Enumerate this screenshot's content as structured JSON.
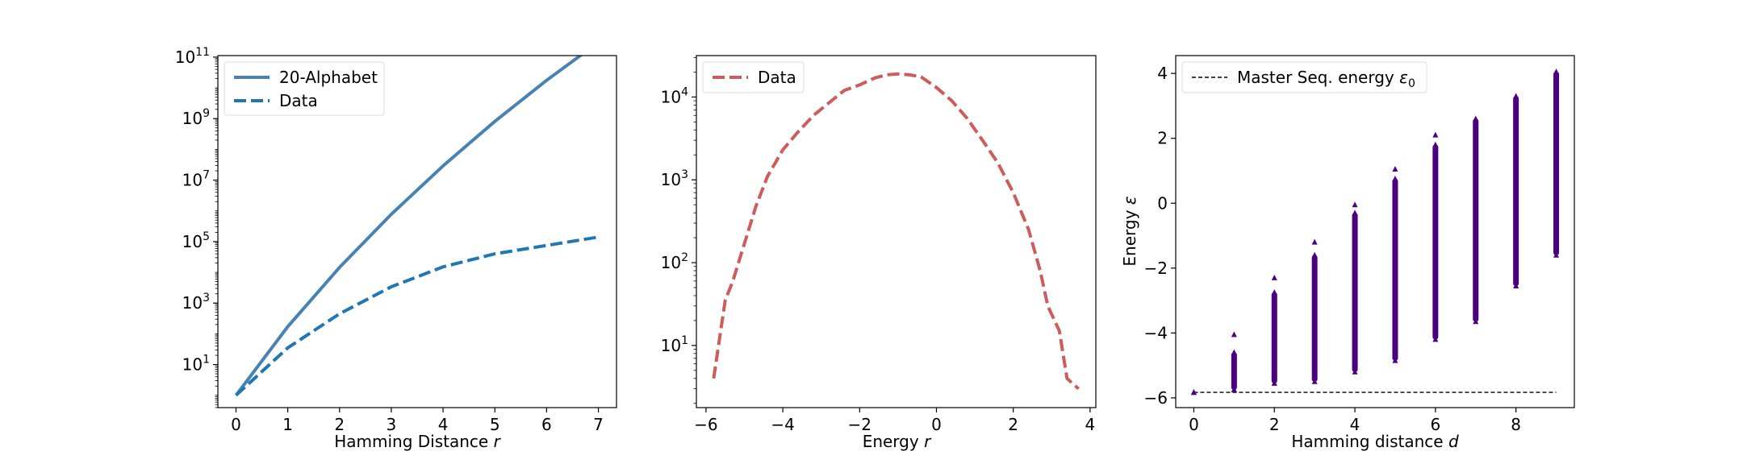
{
  "chart_data": [
    {
      "type": "line",
      "xlabel": "Hamming Distance",
      "xlabel_var": "r",
      "ylabel": "",
      "yscale": "log",
      "xlim": [
        -0.35,
        7.35
      ],
      "ylim_log10": [
        -0.4,
        11.05
      ],
      "xticks": [
        0,
        1,
        2,
        3,
        4,
        5,
        6,
        7
      ],
      "yticks": [
        {
          "base": "10",
          "exp": "1",
          "log": 1
        },
        {
          "base": "10",
          "exp": "3",
          "log": 3
        },
        {
          "base": "10",
          "exp": "5",
          "log": 5
        },
        {
          "base": "10",
          "exp": "7",
          "log": 7
        },
        {
          "base": "10",
          "exp": "9",
          "log": 9
        },
        {
          "base": "10",
          "exp": "11",
          "log": 11
        }
      ],
      "legend_position": "top-left",
      "series": [
        {
          "name": "20-Alphabet",
          "style": "solid",
          "color": "#4682b4",
          "x": [
            0,
            1,
            2,
            3,
            4,
            5,
            6,
            7
          ],
          "y": [
            1,
            171,
            14535,
            775200,
            29070000,
            813960000,
            17635800000,
            302328000000
          ]
        },
        {
          "name": "Data",
          "style": "dashed",
          "color": "#1f77b4",
          "x": [
            0,
            1,
            2,
            3,
            4,
            5,
            6,
            7
          ],
          "y": [
            1,
            35,
            450,
            3400,
            15000,
            40000,
            75000,
            140000
          ]
        }
      ]
    },
    {
      "type": "line",
      "xlabel": "Energy",
      "xlabel_var": "r",
      "ylabel": "",
      "yscale": "log",
      "xlim": [
        -6.25,
        4.15
      ],
      "ylim_log10": [
        0.25,
        4.5
      ],
      "xticks": [
        -6,
        -4,
        -2,
        0,
        2,
        4
      ],
      "yticks": [
        {
          "base": "10",
          "exp": "1",
          "log": 1
        },
        {
          "base": "10",
          "exp": "2",
          "log": 2
        },
        {
          "base": "10",
          "exp": "3",
          "log": 3
        },
        {
          "base": "10",
          "exp": "4",
          "log": 4
        }
      ],
      "legend_position": "top-left",
      "series": [
        {
          "name": "Data",
          "style": "dashed",
          "color": "#cd5c5c",
          "x": [
            -5.8,
            -5.5,
            -5.3,
            -5.0,
            -4.7,
            -4.4,
            -4.0,
            -3.6,
            -3.2,
            -2.8,
            -2.4,
            -2.0,
            -1.6,
            -1.3,
            -1.0,
            -0.7,
            -0.4,
            0.0,
            0.4,
            0.8,
            1.2,
            1.6,
            2.0,
            2.4,
            2.7,
            2.9,
            3.2,
            3.4,
            3.7
          ],
          "y": [
            4,
            35,
            60,
            170,
            480,
            1100,
            2300,
            3800,
            6000,
            8500,
            12000,
            14000,
            17000,
            18500,
            19000,
            18500,
            17500,
            13000,
            9000,
            5500,
            3000,
            1600,
            700,
            250,
            80,
            30,
            15,
            4,
            3
          ]
        }
      ]
    },
    {
      "type": "scatter",
      "xlabel": "Hamming distance",
      "xlabel_var": "d",
      "ylabel": "Energy",
      "ylabel_var": "ε",
      "xlim": [
        -0.45,
        9.45
      ],
      "ylim": [
        -6.3,
        4.55
      ],
      "xticks": [
        0,
        2,
        4,
        6,
        8
      ],
      "yticks": [
        -6,
        -4,
        -2,
        0,
        2,
        4
      ],
      "legend_position": "top-left",
      "reference_line": {
        "name": "Master Seq. energy",
        "symbol": "ε",
        "subscript": "0",
        "y": -5.83,
        "x_range": [
          0,
          9
        ],
        "style": "dashed",
        "color": "#000000"
      },
      "series": [
        {
          "name": "",
          "color": "#4b0082",
          "columns": [
            {
              "x": 0,
              "ymin": -5.83,
              "ymax": -5.83,
              "outliers": [
                -5.83
              ]
            },
            {
              "x": 1,
              "ymin": -5.75,
              "ymax": -4.6,
              "outliers": [
                -4.05,
                -5.75
              ]
            },
            {
              "x": 2,
              "ymin": -5.55,
              "ymax": -2.75,
              "outliers": [
                -2.3,
                -5.55
              ]
            },
            {
              "x": 3,
              "ymin": -5.5,
              "ymax": -1.6,
              "outliers": [
                -1.2
              ]
            },
            {
              "x": 4,
              "ymin": -5.2,
              "ymax": -0.3,
              "outliers": [
                -0.05
              ]
            },
            {
              "x": 5,
              "ymin": -4.85,
              "ymax": 0.75,
              "outliers": [
                1.05
              ]
            },
            {
              "x": 6,
              "ymin": -4.2,
              "ymax": 1.8,
              "outliers": [
                2.1
              ]
            },
            {
              "x": 7,
              "ymin": -3.65,
              "ymax": 2.6,
              "outliers": []
            },
            {
              "x": 8,
              "ymin": -2.55,
              "ymax": 3.3,
              "outliers": []
            },
            {
              "x": 9,
              "ymin": -1.6,
              "ymax": 4.05,
              "outliers": []
            }
          ]
        }
      ]
    }
  ]
}
